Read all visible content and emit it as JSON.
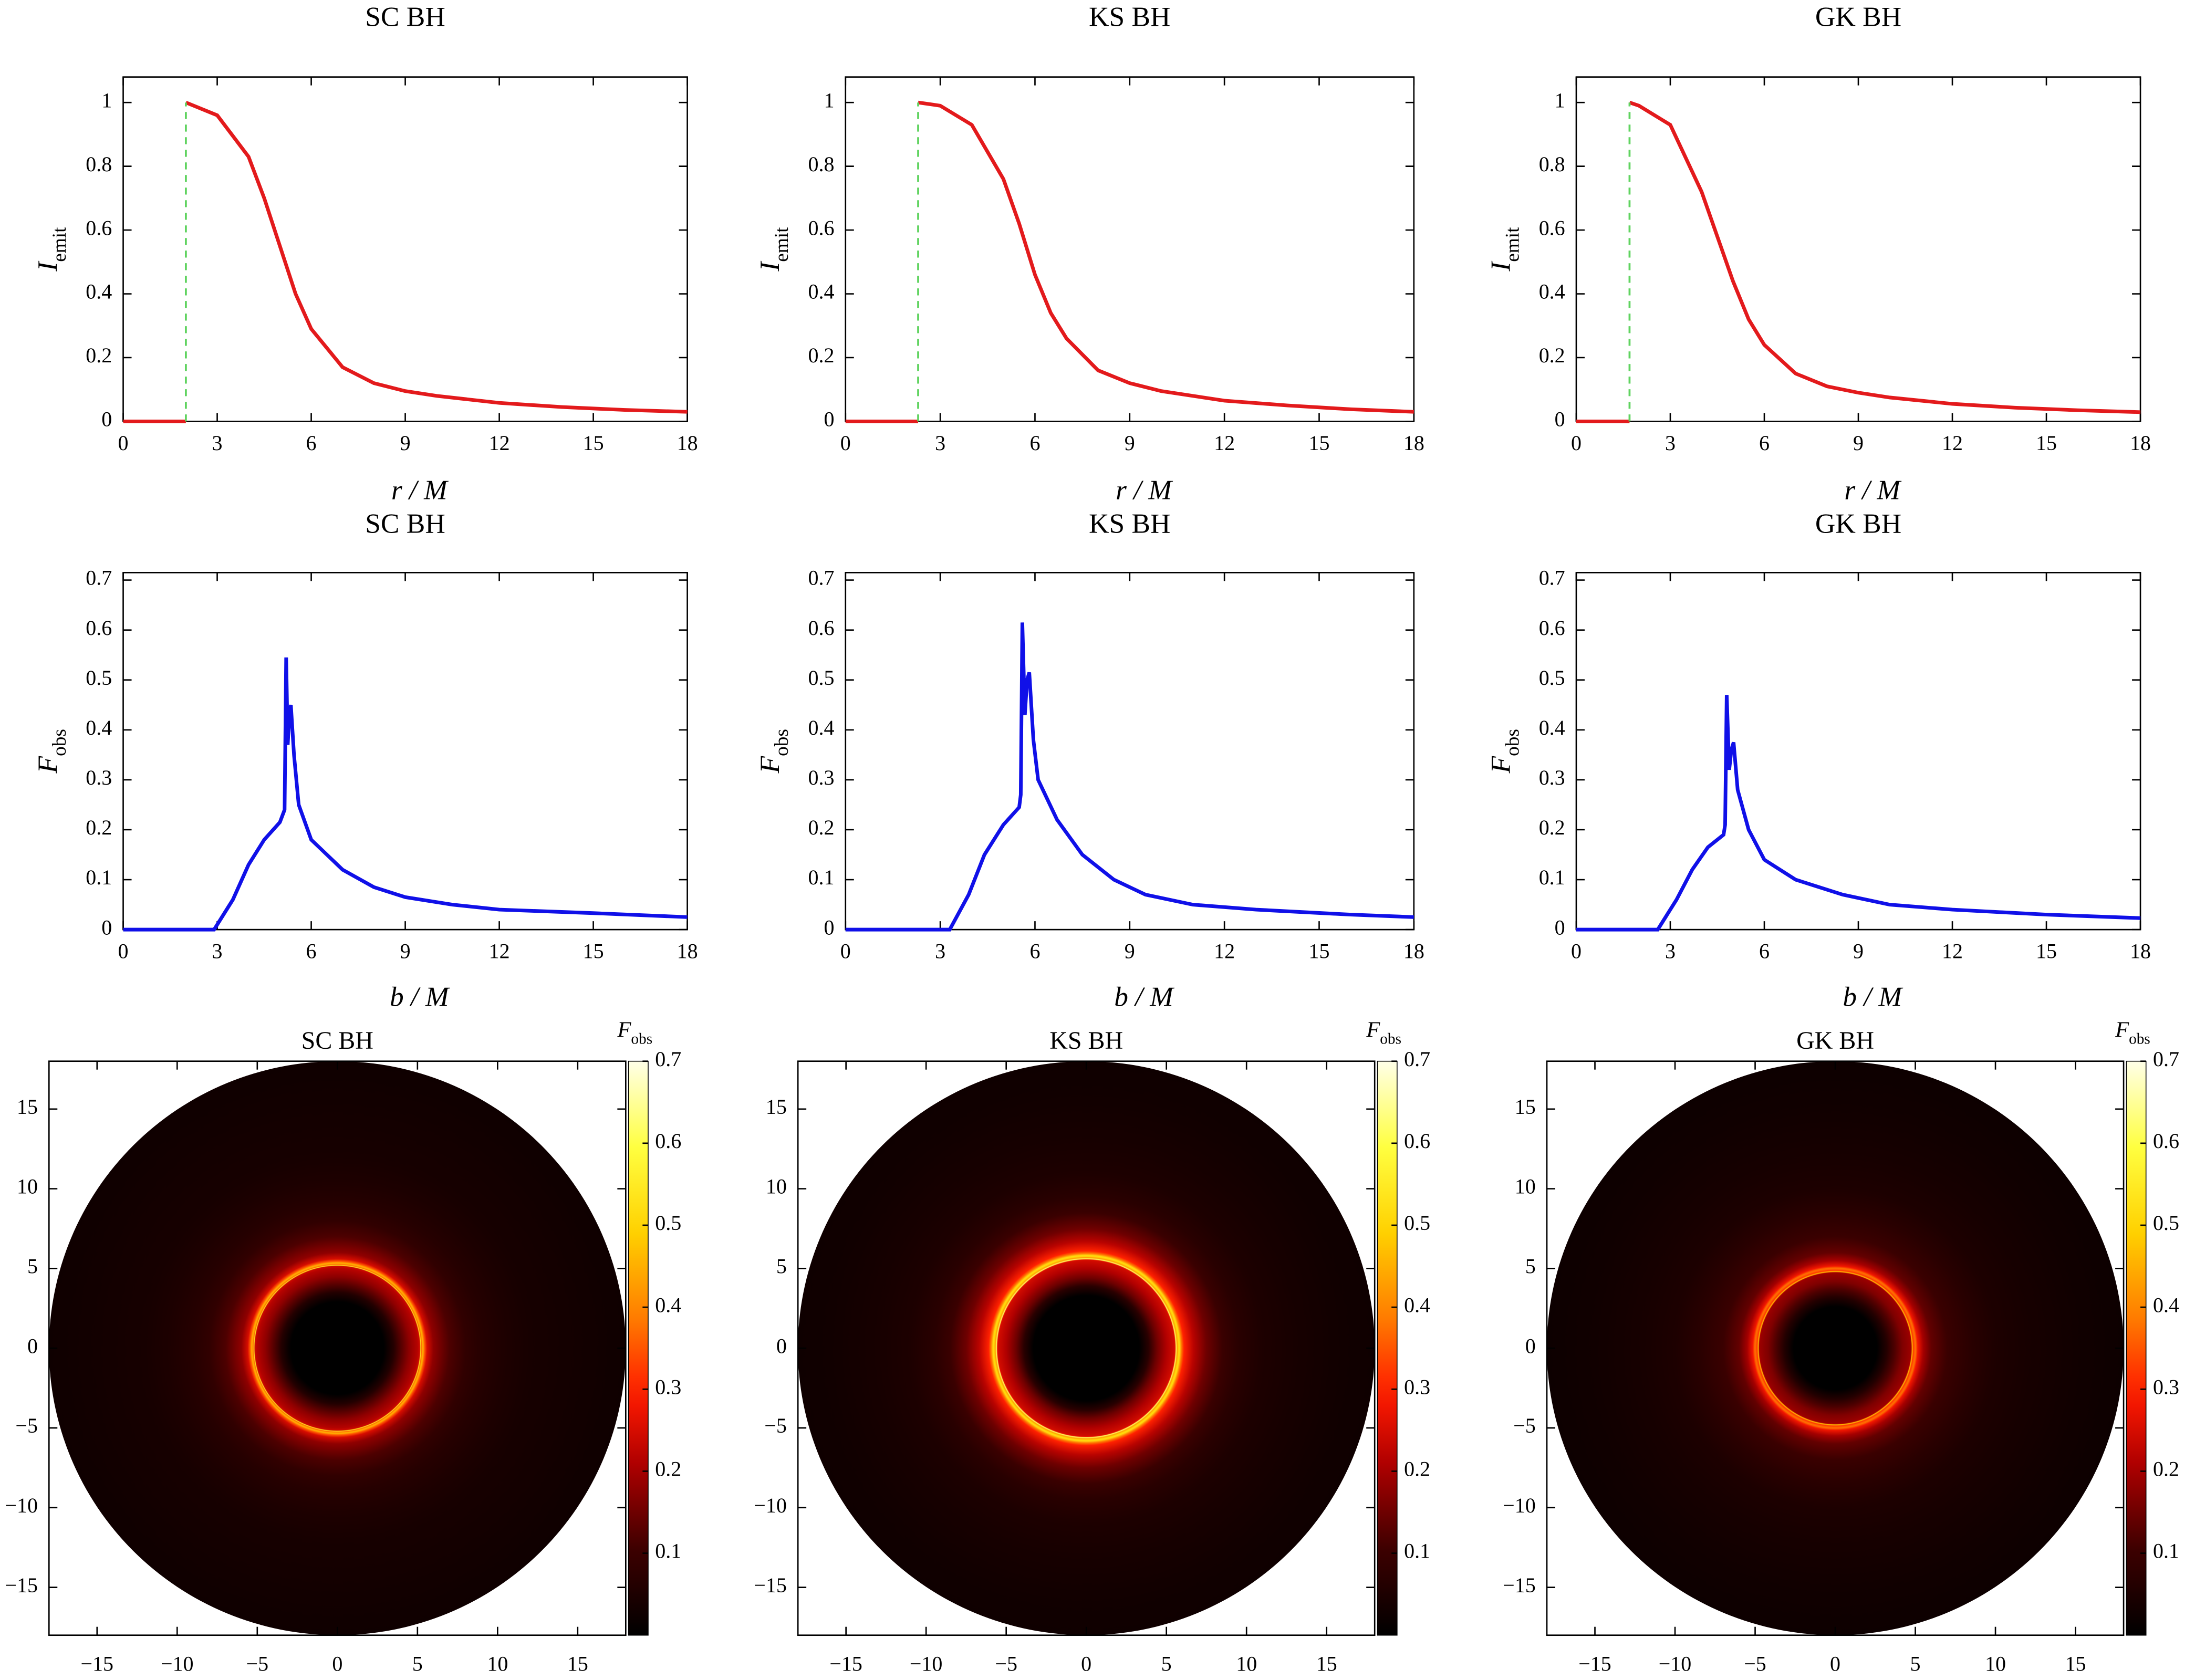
{
  "chart_data": [
    {
      "type": "line",
      "title": "SC BH",
      "xlabel": "r / M",
      "ylabel": "I",
      "ylabel_sub": "emit",
      "xlim": [
        0,
        18
      ],
      "ylim": [
        0,
        1.08
      ],
      "xticks": [
        0,
        3,
        6,
        9,
        12,
        15,
        18
      ],
      "yticks": [
        0,
        0.2,
        0.4,
        0.6,
        0.8,
        1
      ],
      "series": [
        {
          "color": "#e31a1c",
          "x": [
            0,
            2,
            2,
            2,
            3,
            4,
            4.5,
            5,
            5.5,
            6,
            7,
            8,
            9,
            10,
            12,
            14,
            16,
            18
          ],
          "values": [
            0,
            0,
            null,
            1,
            0.96,
            0.83,
            0.7,
            0.55,
            0.4,
            0.29,
            0.17,
            0.12,
            0.095,
            0.08,
            0.058,
            0.045,
            0.036,
            0.03
          ]
        },
        {
          "color": "#5fd35f",
          "dashed": true,
          "x": [
            2,
            2
          ],
          "values": [
            0,
            1
          ]
        }
      ]
    },
    {
      "type": "line",
      "title": "KS BH",
      "xlabel": "r / M",
      "ylabel": "I",
      "ylabel_sub": "emit",
      "xlim": [
        0,
        18
      ],
      "ylim": [
        0,
        1.08
      ],
      "xticks": [
        0,
        3,
        6,
        9,
        12,
        15,
        18
      ],
      "yticks": [
        0,
        0.2,
        0.4,
        0.6,
        0.8,
        1
      ],
      "series": [
        {
          "color": "#e31a1c",
          "x": [
            0,
            2.3,
            2.3,
            2.3,
            3,
            4,
            5,
            5.5,
            6,
            6.5,
            7,
            8,
            9,
            10,
            12,
            14,
            16,
            18
          ],
          "values": [
            0,
            0,
            null,
            1,
            0.99,
            0.93,
            0.76,
            0.62,
            0.46,
            0.34,
            0.26,
            0.16,
            0.12,
            0.095,
            0.065,
            0.05,
            0.038,
            0.03
          ]
        },
        {
          "color": "#5fd35f",
          "dashed": true,
          "x": [
            2.3,
            2.3
          ],
          "values": [
            0,
            1
          ]
        }
      ]
    },
    {
      "type": "line",
      "title": "GK BH",
      "xlabel": "r / M",
      "ylabel": "I",
      "ylabel_sub": "emit",
      "xlim": [
        0,
        18
      ],
      "ylim": [
        0,
        1.08
      ],
      "xticks": [
        0,
        3,
        6,
        9,
        12,
        15,
        18
      ],
      "yticks": [
        0,
        0.2,
        0.4,
        0.6,
        0.8,
        1
      ],
      "series": [
        {
          "color": "#e31a1c",
          "x": [
            0,
            1.7,
            1.7,
            1.7,
            2,
            3,
            4,
            4.5,
            5,
            5.5,
            6,
            7,
            8,
            9,
            10,
            12,
            14,
            16,
            18
          ],
          "values": [
            0,
            0,
            null,
            1,
            0.99,
            0.93,
            0.72,
            0.58,
            0.44,
            0.32,
            0.24,
            0.15,
            0.11,
            0.09,
            0.075,
            0.055,
            0.043,
            0.035,
            0.029
          ]
        },
        {
          "color": "#5fd35f",
          "dashed": true,
          "x": [
            1.7,
            1.7
          ],
          "values": [
            0,
            1
          ]
        }
      ]
    },
    {
      "type": "line",
      "title": "SC BH",
      "xlabel": "b / M",
      "ylabel": "F",
      "ylabel_sub": "obs",
      "xlim": [
        0,
        18
      ],
      "ylim": [
        0,
        0.715
      ],
      "xticks": [
        0,
        3,
        6,
        9,
        12,
        15,
        18
      ],
      "yticks": [
        0,
        0.1,
        0.2,
        0.3,
        0.4,
        0.5,
        0.6,
        0.7
      ],
      "series": [
        {
          "color": "#1010e8",
          "x": [
            0,
            2.9,
            3.5,
            4,
            4.5,
            5,
            5.15,
            5.2,
            5.25,
            5.3,
            5.35,
            5.45,
            5.6,
            6,
            7,
            8,
            9,
            10.5,
            12,
            15,
            18
          ],
          "values": [
            0,
            0,
            0.06,
            0.13,
            0.18,
            0.215,
            0.24,
            0.545,
            0.37,
            0.43,
            0.45,
            0.35,
            0.25,
            0.18,
            0.12,
            0.085,
            0.065,
            0.05,
            0.04,
            0.033,
            0.025
          ]
        }
      ]
    },
    {
      "type": "line",
      "title": "KS BH",
      "xlabel": "b / M",
      "ylabel": "F",
      "ylabel_sub": "obs",
      "xlim": [
        0,
        18
      ],
      "ylim": [
        0,
        0.715
      ],
      "xticks": [
        0,
        3,
        6,
        9,
        12,
        15,
        18
      ],
      "yticks": [
        0,
        0.1,
        0.2,
        0.3,
        0.4,
        0.5,
        0.6,
        0.7
      ],
      "series": [
        {
          "color": "#1010e8",
          "x": [
            0,
            3.3,
            3.9,
            4.4,
            5,
            5.5,
            5.55,
            5.6,
            5.68,
            5.75,
            5.82,
            5.95,
            6.1,
            6.7,
            7.5,
            8.5,
            9.5,
            11,
            13,
            16,
            18
          ],
          "values": [
            0,
            0,
            0.07,
            0.15,
            0.21,
            0.245,
            0.27,
            0.615,
            0.43,
            0.5,
            0.515,
            0.38,
            0.3,
            0.22,
            0.15,
            0.1,
            0.07,
            0.05,
            0.04,
            0.03,
            0.025
          ]
        }
      ]
    },
    {
      "type": "line",
      "title": "GK BH",
      "xlabel": "b / M",
      "ylabel": "F",
      "ylabel_sub": "obs",
      "xlim": [
        0,
        18
      ],
      "ylim": [
        0,
        0.715
      ],
      "xticks": [
        0,
        3,
        6,
        9,
        12,
        15,
        18
      ],
      "yticks": [
        0,
        0.1,
        0.2,
        0.3,
        0.4,
        0.5,
        0.6,
        0.7
      ],
      "series": [
        {
          "color": "#1010e8",
          "x": [
            0,
            2.6,
            3.2,
            3.7,
            4.2,
            4.7,
            4.75,
            4.8,
            4.88,
            4.95,
            5.02,
            5.15,
            5.5,
            6,
            7,
            8.5,
            10,
            12,
            15,
            18
          ],
          "values": [
            0,
            0,
            0.06,
            0.12,
            0.165,
            0.19,
            0.21,
            0.47,
            0.32,
            0.36,
            0.375,
            0.28,
            0.2,
            0.14,
            0.1,
            0.07,
            0.05,
            0.04,
            0.03,
            0.023
          ]
        }
      ]
    },
    {
      "type": "image",
      "title": "SC BH",
      "xlim": [
        -18,
        18
      ],
      "ylim": [
        -18,
        18
      ],
      "xticks": [
        {
          "value": -15,
          "label": "−15"
        },
        {
          "value": -10,
          "label": "−10"
        },
        {
          "value": -5,
          "label": "−5"
        },
        0,
        5,
        10,
        15
      ],
      "yticks": [
        {
          "value": -15,
          "label": "−15"
        },
        {
          "value": -10,
          "label": "−10"
        },
        {
          "value": -5,
          "label": "−5"
        },
        0,
        5,
        10,
        15
      ],
      "colorbar": {
        "label": "F",
        "label_sub": "obs",
        "lim": [
          0,
          0.7
        ],
        "ticks": [
          0.1,
          0.2,
          0.3,
          0.4,
          0.5,
          0.6,
          0.7
        ]
      }
    },
    {
      "type": "image",
      "title": "KS BH",
      "xlim": [
        -18,
        18
      ],
      "ylim": [
        -18,
        18
      ],
      "xticks": [
        {
          "value": -15,
          "label": "−15"
        },
        {
          "value": -10,
          "label": "−10"
        },
        {
          "value": -5,
          "label": "−5"
        },
        0,
        5,
        10,
        15
      ],
      "yticks": [
        {
          "value": -15,
          "label": "−15"
        },
        {
          "value": -10,
          "label": "−10"
        },
        {
          "value": -5,
          "label": "−5"
        },
        0,
        5,
        10,
        15
      ],
      "colorbar": {
        "label": "F",
        "label_sub": "obs",
        "lim": [
          0,
          0.7
        ],
        "ticks": [
          0.1,
          0.2,
          0.3,
          0.4,
          0.5,
          0.6,
          0.7
        ]
      }
    },
    {
      "type": "image",
      "title": "GK BH",
      "xlim": [
        -18,
        18
      ],
      "ylim": [
        -18,
        18
      ],
      "xticks": [
        {
          "value": -15,
          "label": "−15"
        },
        {
          "value": -10,
          "label": "−10"
        },
        {
          "value": -5,
          "label": "−5"
        },
        0,
        5,
        10,
        15
      ],
      "yticks": [
        {
          "value": -15,
          "label": "−15"
        },
        {
          "value": -10,
          "label": "−10"
        },
        {
          "value": -5,
          "label": "−5"
        },
        0,
        5,
        10,
        15
      ],
      "colorbar": {
        "label": "F",
        "label_sub": "obs",
        "lim": [
          0,
          0.7
        ],
        "ticks": [
          0.1,
          0.2,
          0.3,
          0.4,
          0.5,
          0.6,
          0.7
        ]
      }
    }
  ]
}
